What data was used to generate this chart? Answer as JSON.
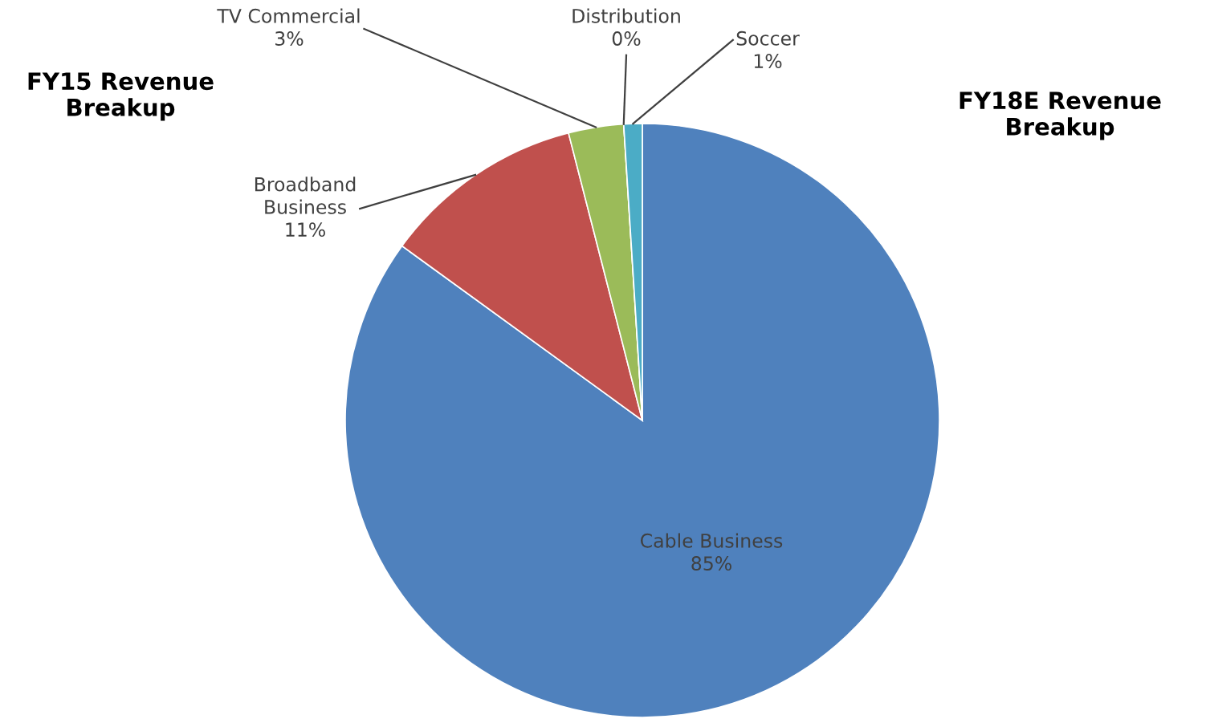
{
  "chart_data": {
    "type": "pie",
    "title": "FY15 Revenue\nBreakup",
    "subtitle": "FY18E Revenue\nBreakup",
    "categories": [
      "Cable Business",
      "Broadband\nBusiness",
      "TV Commercial",
      "Distribution",
      "Soccer"
    ],
    "values": [
      85,
      11,
      3,
      0,
      1
    ],
    "value_labels": [
      "85%",
      "11%",
      "3%",
      "0%",
      "1%"
    ],
    "colors": [
      "#4f81bd",
      "#c0504d",
      "#9bbb59",
      "#8064a2",
      "#4bacc6"
    ]
  }
}
